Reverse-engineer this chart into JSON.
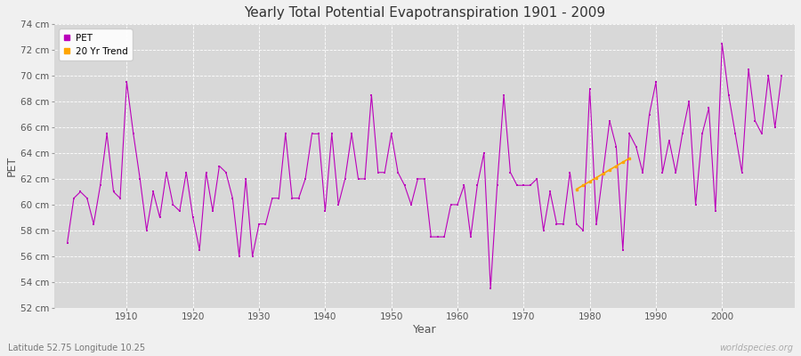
{
  "title": "Yearly Total Potential Evapotranspiration 1901 - 2009",
  "xlabel": "Year",
  "ylabel": "PET",
  "subtitle": "Latitude 52.75 Longitude 10.25",
  "watermark": "worldspecies.org",
  "ylim": [
    52,
    74
  ],
  "yticks": [
    52,
    54,
    56,
    58,
    60,
    62,
    64,
    66,
    68,
    70,
    72,
    74
  ],
  "xlim": [
    1899,
    2011
  ],
  "xticks": [
    1910,
    1920,
    1930,
    1940,
    1950,
    1960,
    1970,
    1980,
    1990,
    2000
  ],
  "pet_color": "#bb00bb",
  "trend_color": "#ffa500",
  "fig_bg_color": "#f0f0f0",
  "plot_bg_color": "#d8d8d8",
  "years": [
    1901,
    1902,
    1903,
    1904,
    1905,
    1906,
    1907,
    1908,
    1909,
    1910,
    1911,
    1912,
    1913,
    1914,
    1915,
    1916,
    1917,
    1918,
    1919,
    1920,
    1921,
    1922,
    1923,
    1924,
    1925,
    1926,
    1927,
    1928,
    1929,
    1930,
    1931,
    1932,
    1933,
    1934,
    1935,
    1936,
    1937,
    1938,
    1939,
    1940,
    1941,
    1942,
    1943,
    1944,
    1945,
    1946,
    1947,
    1948,
    1949,
    1950,
    1951,
    1952,
    1953,
    1954,
    1955,
    1956,
    1957,
    1958,
    1959,
    1960,
    1961,
    1962,
    1963,
    1964,
    1965,
    1966,
    1967,
    1968,
    1969,
    1970,
    1971,
    1972,
    1973,
    1974,
    1975,
    1976,
    1977,
    1978,
    1979,
    1980,
    1981,
    1982,
    1983,
    1984,
    1985,
    1986,
    1987,
    1988,
    1989,
    1990,
    1991,
    1992,
    1993,
    1994,
    1995,
    1996,
    1997,
    1998,
    1999,
    2000,
    2001,
    2002,
    2003,
    2004,
    2005,
    2006,
    2007,
    2008,
    2009
  ],
  "pet_values": [
    57.0,
    60.5,
    61.0,
    60.5,
    58.5,
    61.5,
    65.5,
    61.0,
    60.5,
    69.5,
    65.5,
    62.0,
    58.0,
    61.0,
    59.0,
    62.5,
    60.0,
    59.5,
    62.5,
    59.0,
    56.5,
    62.5,
    59.5,
    63.0,
    62.5,
    60.5,
    56.0,
    62.0,
    56.0,
    58.5,
    58.5,
    60.5,
    60.5,
    65.5,
    60.5,
    60.5,
    62.0,
    65.5,
    65.5,
    59.5,
    65.5,
    60.0,
    62.0,
    65.5,
    62.0,
    62.0,
    68.5,
    62.5,
    62.5,
    65.5,
    62.5,
    61.5,
    60.0,
    62.0,
    62.0,
    57.5,
    57.5,
    57.5,
    60.0,
    60.0,
    61.5,
    57.5,
    61.5,
    64.0,
    53.5,
    61.5,
    68.5,
    62.5,
    61.5,
    61.5,
    61.5,
    62.0,
    58.0,
    61.0,
    58.5,
    58.5,
    62.5,
    58.5,
    58.0,
    69.0,
    58.5,
    62.5,
    66.5,
    64.5,
    56.5,
    65.5,
    64.5,
    62.5,
    67.0,
    69.5,
    62.5,
    65.0,
    62.5,
    65.5,
    68.0,
    60.0,
    65.5,
    67.5,
    59.5,
    72.5,
    68.5,
    65.5,
    62.5,
    70.5,
    66.5,
    65.5,
    70.0,
    66.0,
    70.0
  ],
  "trend_years": [
    1978,
    1979,
    1980,
    1981,
    1982,
    1983,
    1984,
    1985,
    1986
  ],
  "trend_values": [
    61.2,
    61.5,
    61.8,
    62.1,
    62.4,
    62.7,
    63.0,
    63.3,
    63.6
  ]
}
